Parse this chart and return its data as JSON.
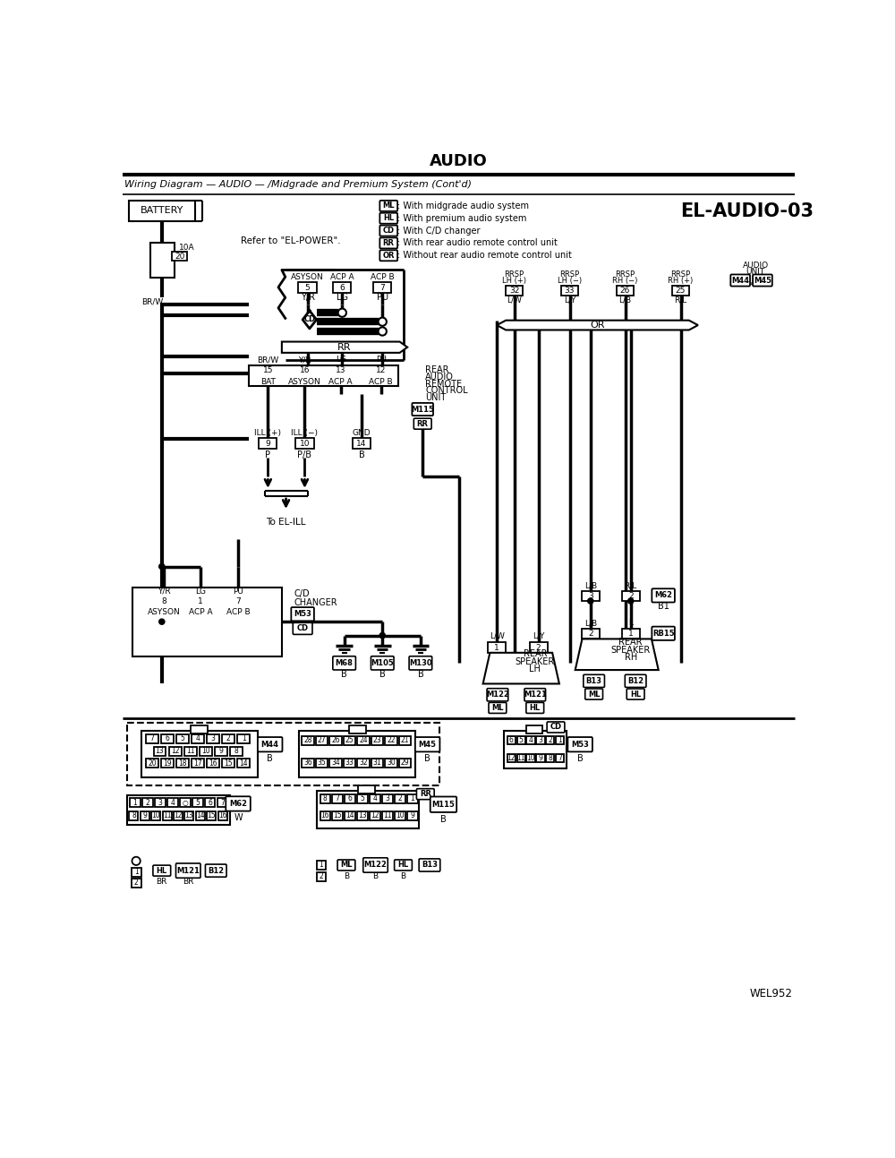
{
  "title": "AUDIO",
  "subtitle": "Wiring Diagram — AUDIO — /Midgrade and Premium System (Cont'd)",
  "diagram_id": "EL-AUDIO-03",
  "watermark": "WEL952",
  "bg_color": "#ffffff"
}
